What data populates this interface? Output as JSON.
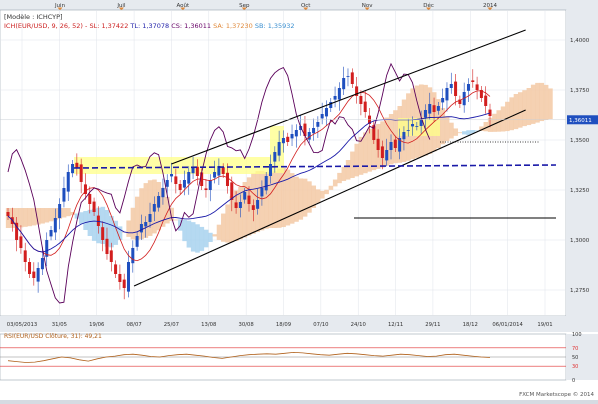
{
  "header": {
    "model": "[Modèle : ICHCYP]",
    "legend": [
      {
        "text": "ICH(EUR/USD, 9, 26, 52) -",
        "color": "#cc2222"
      },
      {
        "text": "SL: 1,37422",
        "color": "#cc2222"
      },
      {
        "text": "TL: 1,37078",
        "color": "#2222aa"
      },
      {
        "text": "CS: 1,36011",
        "color": "#660066"
      },
      {
        "text": "SA: 1,37230",
        "color": "#e08a3c"
      },
      {
        "text": "SB: 1,35932",
        "color": "#3a8fd0"
      }
    ]
  },
  "footer": {
    "watermark": "FXCM Marketscope © 2014"
  },
  "colors": {
    "up_candle": "#1f4fbf",
    "down_candle": "#d21e1e",
    "tenkan": "#d21e1e",
    "kijun": "#1a1aa8",
    "chikou": "#5a005a",
    "kumo_bull": "#f3c9a4",
    "kumo_bear": "#a8d2ee",
    "highlight": "#ffff88",
    "rsi_line": "#b0601a",
    "rsi_levels": "#e03030"
  },
  "chart_data": [
    {
      "type": "candlestick",
      "series": [
        {
          "name": "SL",
          "value": 1.37422
        },
        {
          "name": "TL",
          "value": 1.37078
        },
        {
          "name": "CS",
          "value": 1.36011
        },
        {
          "name": "SA",
          "value": 1.3723
        },
        {
          "name": "SB",
          "value": 1.35932
        }
      ],
      "last_price": 1.36011,
      "last_price_label": "1,36011",
      "y_ticks": [
        1.4,
        1.375,
        1.35,
        1.325,
        1.3,
        1.275
      ],
      "y_tick_labels": [
        "1,4000",
        "1,3750",
        "1,3500",
        "1,3250",
        "1,3000",
        "1,2750"
      ],
      "ylim": [
        1.262,
        1.415
      ],
      "x_tick_labels": [
        "03/05/2013",
        "31/05",
        "19/06",
        "08/07",
        "25/07",
        "13/08",
        "30/08",
        "18/09",
        "07/10",
        "24/10",
        "12/11",
        "29/11",
        "18/12",
        "06/01/2014",
        "19/01"
      ],
      "month_labels": [
        "Juin",
        "Juil",
        "Août",
        "Sep",
        "Oct",
        "Nov",
        "Déc",
        "2014"
      ],
      "closes": [
        1.312,
        1.308,
        1.3,
        1.296,
        1.289,
        1.283,
        1.281,
        1.286,
        1.291,
        1.3,
        1.305,
        1.311,
        1.318,
        1.326,
        1.334,
        1.338,
        1.336,
        1.329,
        1.323,
        1.318,
        1.314,
        1.307,
        1.3,
        1.293,
        1.289,
        1.283,
        1.279,
        1.276,
        1.289,
        1.296,
        1.302,
        1.308,
        1.309,
        1.313,
        1.318,
        1.322,
        1.326,
        1.33,
        1.333,
        1.328,
        1.325,
        1.33,
        1.334,
        1.336,
        1.332,
        1.327,
        1.325,
        1.33,
        1.334,
        1.337,
        1.333,
        1.327,
        1.32,
        1.316,
        1.319,
        1.324,
        1.318,
        1.315,
        1.32,
        1.326,
        1.332,
        1.338,
        1.344,
        1.349,
        1.351,
        1.349,
        1.353,
        1.355,
        1.357,
        1.352,
        1.354,
        1.356,
        1.359,
        1.363,
        1.366,
        1.369,
        1.372,
        1.376,
        1.381,
        1.382,
        1.378,
        1.372,
        1.368,
        1.364,
        1.358,
        1.35,
        1.345,
        1.341,
        1.345,
        1.349,
        1.346,
        1.351,
        1.354,
        1.355,
        1.358,
        1.357,
        1.36,
        1.365,
        1.368,
        1.364,
        1.367,
        1.371,
        1.376,
        1.378,
        1.372,
        1.368,
        1.374,
        1.378,
        1.379,
        1.375,
        1.371,
        1.367,
        1.362
      ],
      "lines": [
        {
          "name": "channel-top",
          "from": [
            "25/07",
            1.338
          ],
          "to": [
            "06/01/2014",
            1.405
          ]
        },
        {
          "name": "channel-bottom",
          "from": [
            "08/07",
            1.277
          ],
          "to": [
            "06/01/2014",
            1.365
          ]
        },
        {
          "name": "support-dashed",
          "value": 1.337
        },
        {
          "name": "horizontal-support",
          "value": 1.311
        },
        {
          "name": "dotted-level",
          "value": 1.349
        }
      ],
      "xlabel": "",
      "ylabel": ""
    },
    {
      "type": "line",
      "title": "RSI(EUR/USD Clôture, 31): 49,21",
      "y_ticks": [
        100,
        70,
        50,
        30,
        0
      ],
      "y_tick_labels": [
        "100",
        "70",
        "50",
        "30",
        "0"
      ],
      "levels": [
        70,
        50,
        30
      ],
      "ylim": [
        0,
        100
      ],
      "last_value": 49.21,
      "values": [
        42,
        40,
        38,
        39,
        42,
        46,
        50,
        48,
        44,
        41,
        46,
        50,
        52,
        55,
        56,
        54,
        51,
        50,
        53,
        55,
        56,
        54,
        52,
        49,
        47,
        50,
        53,
        55,
        56,
        57,
        56,
        58,
        60,
        59,
        57,
        55,
        54,
        56,
        58,
        57,
        55,
        53,
        52,
        54,
        56,
        55,
        53,
        51,
        52,
        55,
        56,
        54,
        52,
        50,
        49
      ]
    }
  ]
}
